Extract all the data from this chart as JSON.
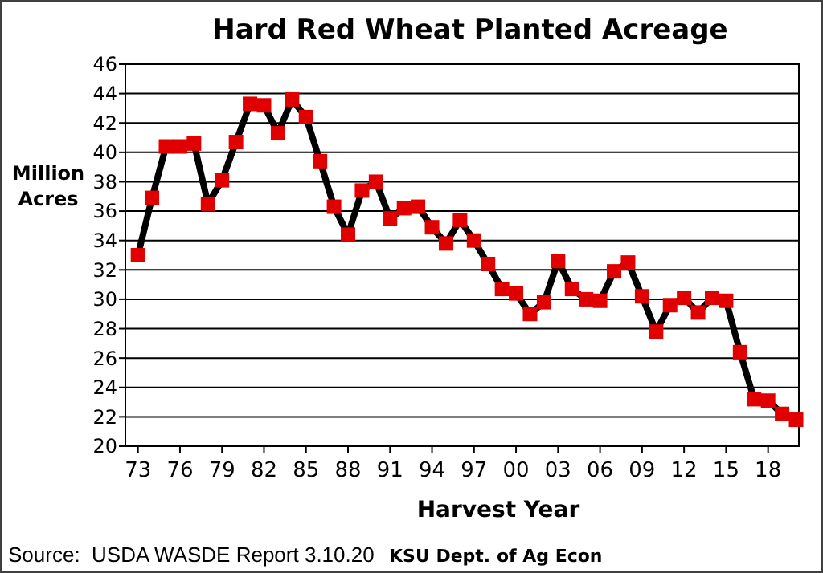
{
  "chart_data": {
    "type": "line",
    "title": "Hard Red Wheat Planted Acreage",
    "xlabel": "Harvest Year",
    "ylabel": "Million Acres",
    "annotations": [
      "Source:  USDA WASDE Report 3.10.20",
      "KSU Dept. of Ag Econ"
    ],
    "x": [
      1973,
      1974,
      1975,
      1976,
      1977,
      1978,
      1979,
      1980,
      1981,
      1982,
      1983,
      1984,
      1985,
      1986,
      1987,
      1988,
      1989,
      1990,
      1991,
      1992,
      1993,
      1994,
      1995,
      1996,
      1997,
      1998,
      1999,
      2000,
      2001,
      2002,
      2003,
      2004,
      2005,
      2006,
      2007,
      2008,
      2009,
      2010,
      2011,
      2012,
      2013,
      2014,
      2015,
      2016,
      2017,
      2018,
      2019,
      2020
    ],
    "series": [
      {
        "color": "#e00000",
        "values": [
          33.0,
          36.9,
          40.4,
          40.4,
          40.6,
          36.5,
          38.1,
          40.7,
          43.3,
          43.2,
          41.3,
          43.6,
          42.4,
          39.4,
          36.3,
          34.4,
          37.4,
          38.0,
          35.5,
          36.2,
          36.3,
          34.9,
          33.8,
          35.4,
          34.0,
          32.4,
          30.7,
          30.4,
          29.0,
          29.8,
          32.6,
          30.7,
          30.0,
          29.9,
          31.9,
          32.5,
          30.2,
          27.8,
          29.6,
          30.1,
          29.1,
          30.1,
          29.9,
          26.4,
          23.2,
          23.1,
          22.2,
          21.8
        ]
      }
    ],
    "xlim": [
      1972.1,
      2020.2
    ],
    "xticks": [
      {
        "value": 1973,
        "label": "73"
      },
      {
        "value": 1976,
        "label": "76"
      },
      {
        "value": 1979,
        "label": "79"
      },
      {
        "value": 1982,
        "label": "82"
      },
      {
        "value": 1985,
        "label": "85"
      },
      {
        "value": 1988,
        "label": "88"
      },
      {
        "value": 1991,
        "label": "91"
      },
      {
        "value": 1994,
        "label": "94"
      },
      {
        "value": 1997,
        "label": "97"
      },
      {
        "value": 2000,
        "label": "00"
      },
      {
        "value": 2003,
        "label": "03"
      },
      {
        "value": 2006,
        "label": "06"
      },
      {
        "value": 2009,
        "label": "09"
      },
      {
        "value": 2012,
        "label": "12"
      },
      {
        "value": 2015,
        "label": "15"
      },
      {
        "value": 2018,
        "label": "18"
      }
    ],
    "ylim": [
      20,
      46
    ],
    "yticks": [
      20,
      22,
      24,
      26,
      28,
      30,
      32,
      34,
      36,
      38,
      40,
      42,
      44,
      46
    ],
    "grid": "y",
    "marker": "square",
    "line_style": "solid"
  }
}
